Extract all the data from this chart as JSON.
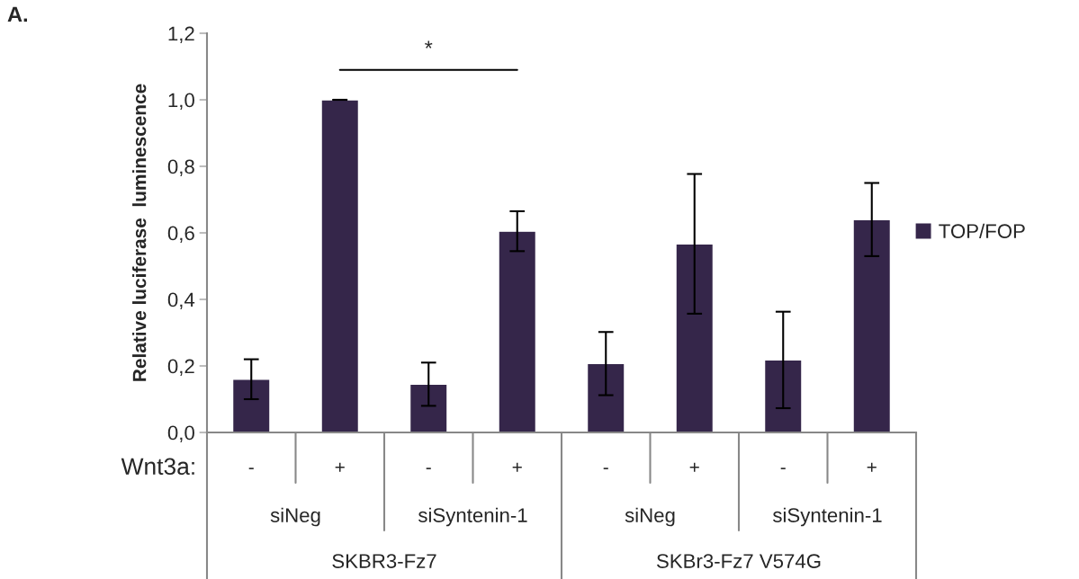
{
  "chart_data": {
    "type": "bar",
    "ylabel": "Relative luciferase  luminescence",
    "categories": [
      "-",
      "+",
      "-",
      "+",
      "-",
      "+",
      "-",
      "+"
    ],
    "series": [
      {
        "name": "TOP/FOP",
        "color": "#35264a",
        "values": [
          0.16,
          1.0,
          0.145,
          0.605,
          0.207,
          0.567,
          0.218,
          0.64
        ],
        "errors": [
          0.06,
          0,
          0.065,
          0.06,
          0.095,
          0.21,
          0.145,
          0.11
        ]
      }
    ],
    "ylim": [
      0,
      1.2
    ],
    "yticks": [
      {
        "value": 0,
        "label": "0,0"
      },
      {
        "value": 0.2,
        "label": "0,2"
      },
      {
        "value": 0.4,
        "label": "0,4"
      },
      {
        "value": 0.6,
        "label": "0,6"
      },
      {
        "value": 0.8,
        "label": "0,8"
      },
      {
        "value": 1.0,
        "label": "1,0"
      },
      {
        "value": 1.2,
        "label": "1,2"
      }
    ],
    "grid": false,
    "legend": "right",
    "annotations": [
      "A.",
      "*",
      "Wnt3a:",
      "siNeg",
      "siSyntenin-1",
      "siNeg",
      "siSyntenin-1",
      "SKBR3-Fz7",
      "SKBr3-Fz7 V574G"
    ]
  }
}
